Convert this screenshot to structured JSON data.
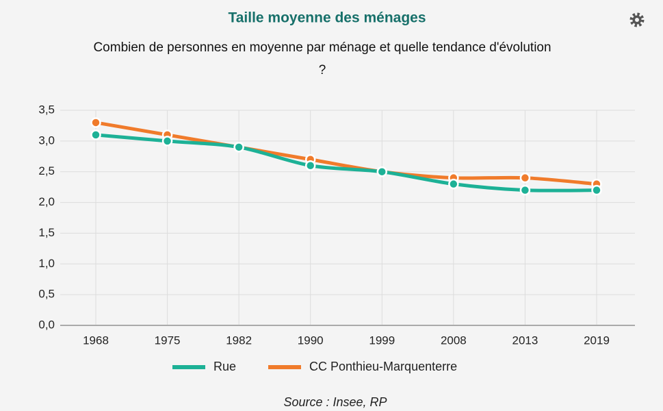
{
  "chart_data": {
    "type": "line",
    "title": "Taille moyenne des ménages",
    "subtitle": [
      "Combien de personnes en moyenne par ménage et quelle tendance d'évolution",
      "?"
    ],
    "categories": [
      "1968",
      "1975",
      "1982",
      "1990",
      "1999",
      "2008",
      "2013",
      "2019"
    ],
    "series": [
      {
        "name": "Rue",
        "color": "#1db196",
        "values": [
          3.1,
          3.0,
          2.9,
          2.6,
          2.5,
          2.3,
          2.2,
          2.2
        ]
      },
      {
        "name": "CC Ponthieu-Marquenterre",
        "color": "#f07b2b",
        "values": [
          3.3,
          3.1,
          2.9,
          2.7,
          2.5,
          2.4,
          2.4,
          2.3
        ]
      }
    ],
    "ylim": [
      0,
      3.5
    ],
    "yticks": [
      {
        "value": 0,
        "label": "0,0"
      },
      {
        "value": 0.5,
        "label": "0,5"
      },
      {
        "value": 1,
        "label": "1,0"
      },
      {
        "value": 1.5,
        "label": "1,5"
      },
      {
        "value": 2,
        "label": "2,0"
      },
      {
        "value": 2.5,
        "label": "2,5"
      },
      {
        "value": 3,
        "label": "3,0"
      },
      {
        "value": 3.5,
        "label": "3,5"
      }
    ],
    "grid": true,
    "legend": "bottom",
    "source": "Source : Insee, RP"
  }
}
